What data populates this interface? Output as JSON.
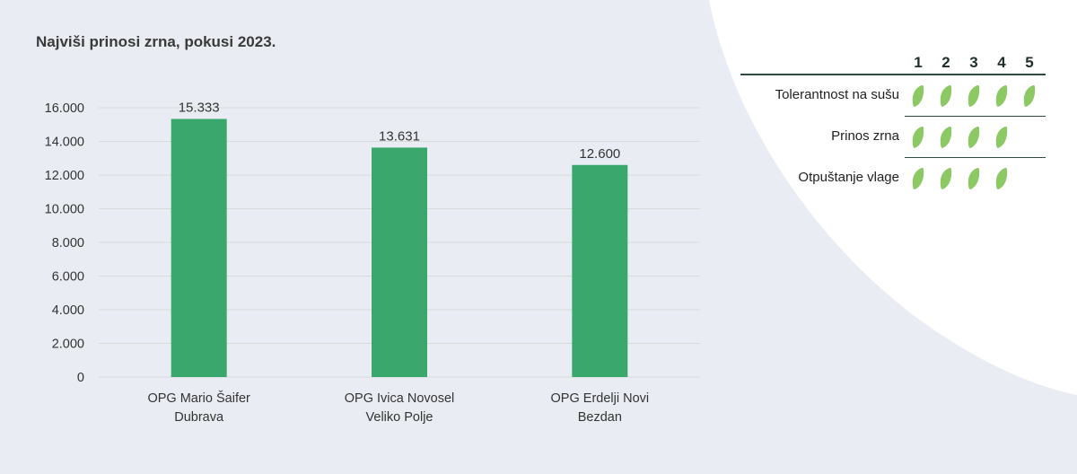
{
  "title": "Najviši prinosi zrna, pokusi 2023.",
  "colors": {
    "bar": "#3aa76d",
    "leaf": "#8cc864",
    "grid": "#d9d9d9",
    "background": "#e9edf3"
  },
  "chart_data": {
    "type": "bar",
    "title": "Najviši prinosi zrna, pokusi 2023.",
    "categories": [
      [
        "OPG Mario Šaifer",
        "Dubrava"
      ],
      [
        "OPG Ivica Novosel",
        "Veliko Polje"
      ],
      [
        "OPG Erdelji Novi",
        "Bezdan"
      ]
    ],
    "values": [
      15333,
      13631,
      12600
    ],
    "value_labels": [
      "15.333",
      "13.631",
      "12.600"
    ],
    "yticks": [
      "0",
      "2.000",
      "4.000",
      "6.000",
      "8.000",
      "10.000",
      "12.000",
      "14.000",
      "16.000"
    ],
    "ylim": [
      0,
      16000
    ],
    "grid": true
  },
  "rating": {
    "columns": [
      "1",
      "2",
      "3",
      "4",
      "5"
    ],
    "rows": [
      {
        "label": "Tolerantnost na sušu",
        "score": 5
      },
      {
        "label": "Prinos zrna",
        "score": 4
      },
      {
        "label": "Otpuštanje vlage",
        "score": 4
      }
    ]
  }
}
